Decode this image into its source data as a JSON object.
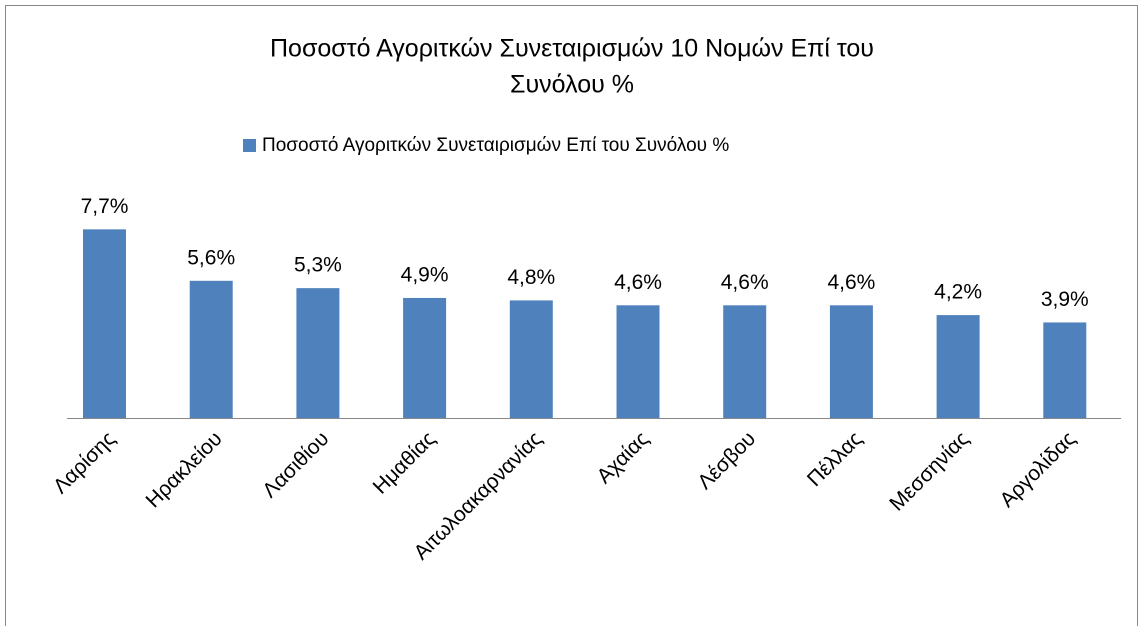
{
  "chart_data": {
    "type": "bar",
    "title": [
      "Ποσοστό Αγοριτκών Συνεταιρισμών 10 Νομών Επί του",
      "Συνόλου %"
    ],
    "categories": [
      "Λαρίσης",
      "Ηρακλείου",
      "Λασιθίου",
      "Ημαθίας",
      "Αιτωλοακαρνανίας",
      "Αχαίας",
      "Λέσβου",
      "Πέλλας",
      "Μεσσηνίας",
      "Αργολίδας"
    ],
    "series": [
      {
        "name": "Ποσοστό Αγοριτκών Συνεταιρισμών Επί του Συνόλου %",
        "color": "#4f81bd",
        "values": [
          7.7,
          5.6,
          5.3,
          4.9,
          4.8,
          4.6,
          4.6,
          4.6,
          4.2,
          3.9
        ],
        "value_labels": [
          "7,7%",
          "5,6%",
          "5,3%",
          "4,9%",
          "4,8%",
          "4,6%",
          "4,6%",
          "4,6%",
          "4,2%",
          "3,9%"
        ]
      }
    ],
    "legend": "top"
  }
}
